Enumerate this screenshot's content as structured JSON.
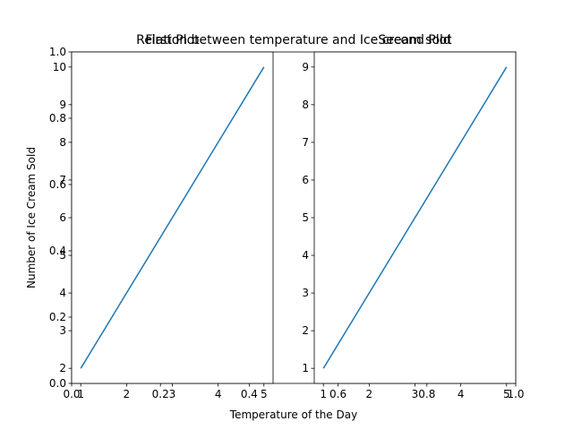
{
  "chart_data": {
    "background_axes": {
      "title": "Relation between temperature and Ice cream sold",
      "xlabel": "Temperature of the Day",
      "ylabel": "Number of Ice Cream Sold",
      "xlim": [
        0.0,
        1.0
      ],
      "ylim": [
        0.0,
        1.0
      ],
      "xticks": [
        "0.0",
        "0.2",
        "0.4",
        "0.6",
        "0.8",
        "1.0"
      ],
      "yticks": [
        "0.0",
        "0.2",
        "0.4",
        "0.6",
        "0.8",
        "1.0"
      ]
    },
    "subplots": [
      {
        "type": "line",
        "title": "First Plot",
        "x": [
          1,
          5
        ],
        "y": [
          2,
          10
        ],
        "xlim": [
          0.8,
          5.2
        ],
        "ylim": [
          1.6,
          10.4
        ],
        "xticks": [
          "1",
          "2",
          "3",
          "4",
          "5"
        ],
        "yticks": [
          "2",
          "3",
          "4",
          "5",
          "6",
          "7",
          "8",
          "9",
          "10"
        ],
        "color": "#1f77b4"
      },
      {
        "type": "line",
        "title": "Second Plot",
        "x": [
          1,
          5
        ],
        "y": [
          1,
          9
        ],
        "xlim": [
          0.8,
          5.2
        ],
        "ylim": [
          0.6,
          9.4
        ],
        "xticks": [
          "1",
          "2",
          "3",
          "4",
          "5"
        ],
        "yticks": [
          "1",
          "2",
          "3",
          "4",
          "5",
          "6",
          "7",
          "8",
          "9"
        ],
        "color": "#1f77b4"
      }
    ]
  }
}
